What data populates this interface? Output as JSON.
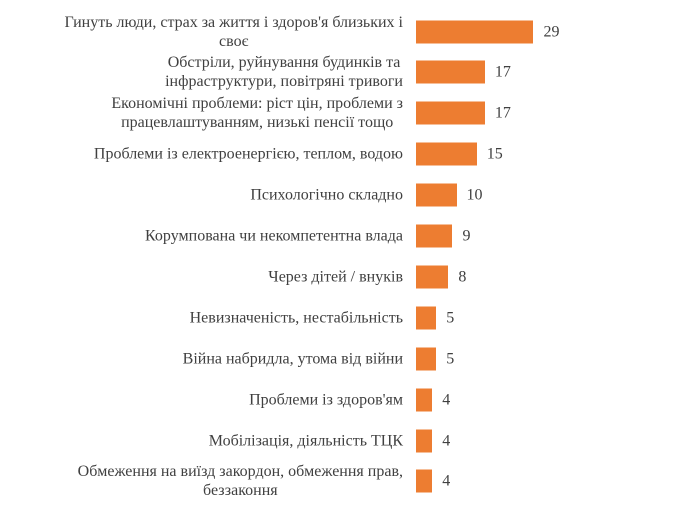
{
  "chart_data": {
    "type": "bar",
    "orientation": "horizontal",
    "categories": [
      "Гинуть люди, страх за життя і здоров'я близьких і\nсвоє",
      "Обстріли, руйнування будинків та\nінфраструктури, повітряні тривоги",
      "Економічні проблеми: ріст цін, проблеми з\nпрацевлаштуванням, низькі пенсії тощо",
      "Проблеми із електроенергією, теплом, водою",
      "Психологічно складно",
      "Корумпована чи некомпетентна влада",
      "Через дітей / внуків",
      "Невизначеність, нестабільність",
      "Війна набридла, утома від війни",
      "Проблеми із здоров'ям",
      "Мобілізація, діяльність ТЦК",
      "Обмеження на виїзд закордон, обмеження прав,\nбеззаконня"
    ],
    "values": [
      29,
      17,
      17,
      15,
      10,
      9,
      8,
      5,
      5,
      4,
      4,
      4
    ],
    "data_labels": true,
    "grid": false,
    "axis_visible": false,
    "bar_color": "#ED7D31",
    "text_color": "#404040"
  }
}
